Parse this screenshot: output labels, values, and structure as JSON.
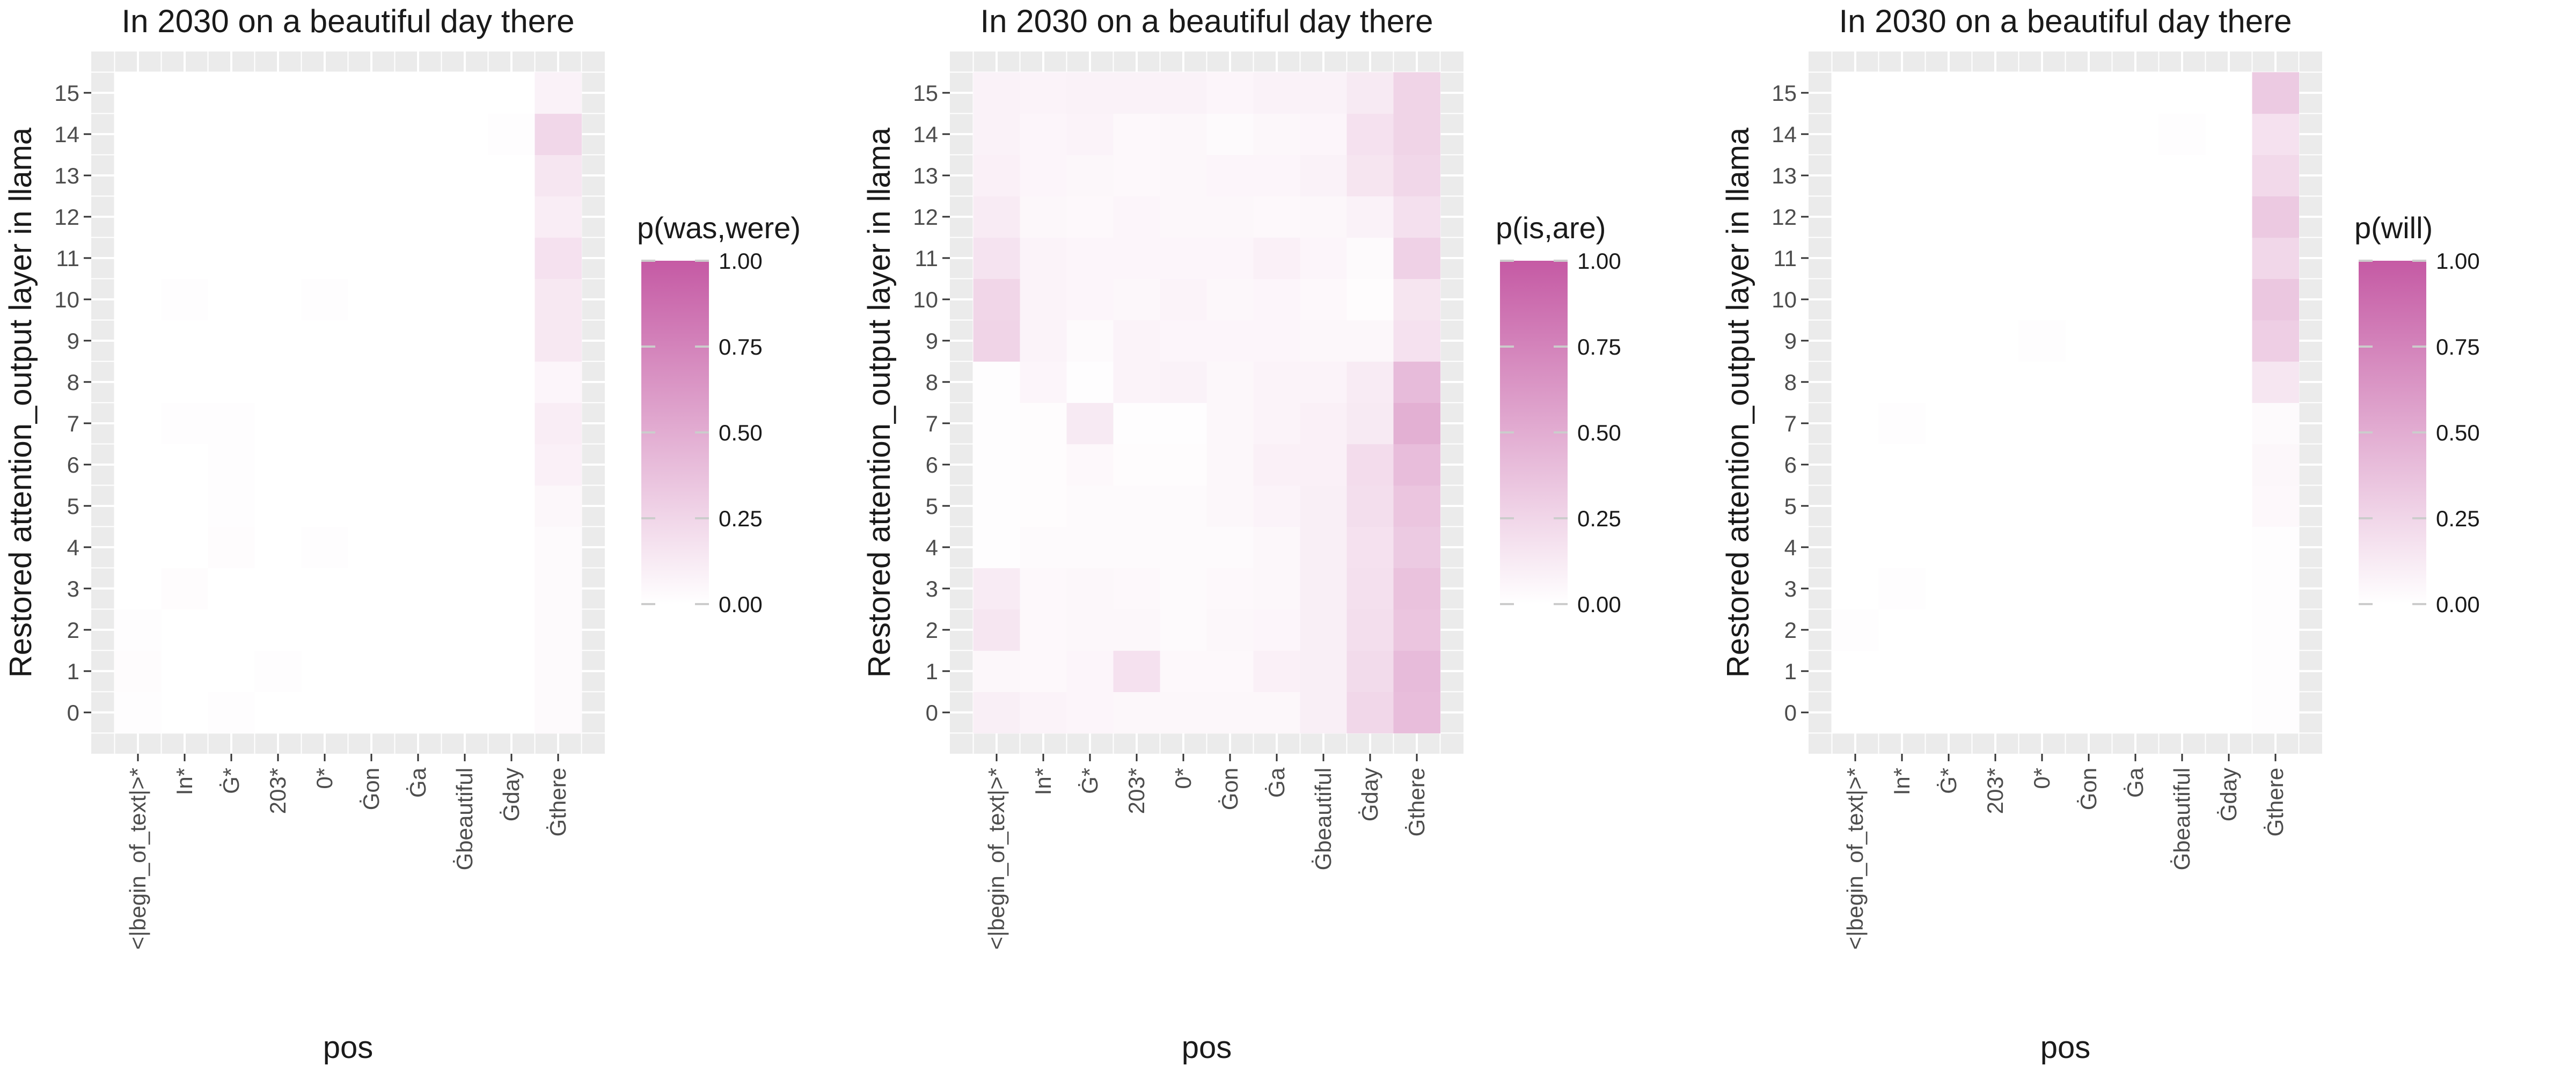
{
  "chart_data": [
    {
      "type": "heatmap",
      "title": "In 2030 on a beautiful day there",
      "xlabel": "pos",
      "ylabel": "Restored attention_output layer in llama",
      "x_categories": [
        "<|begin_of_text|>*",
        "In*",
        "Ġ*",
        "203*",
        "0*",
        "Ġon",
        "Ġa",
        "Ġbeautiful",
        "Ġday",
        "Ġthere"
      ],
      "y_categories": [
        "0",
        "1",
        "2",
        "3",
        "4",
        "5",
        "6",
        "7",
        "8",
        "9",
        "10",
        "11",
        "12",
        "13",
        "14",
        "15"
      ],
      "legend": {
        "title": "p(was,were)",
        "ticks": [
          "0.00",
          "0.25",
          "0.50",
          "0.75",
          "1.00"
        ],
        "position": "right"
      },
      "color_low": "#ffffff",
      "color_high": "#c55aa4",
      "value_range": [
        0,
        1
      ],
      "values": [
        [
          0.01,
          0.0,
          0.01,
          0.0,
          0.0,
          0.0,
          0.0,
          0.0,
          0.0,
          0.03
        ],
        [
          0.02,
          0.0,
          0.0,
          0.01,
          0.0,
          0.0,
          0.0,
          0.0,
          0.0,
          0.03
        ],
        [
          0.01,
          0.0,
          0.0,
          0.0,
          0.0,
          0.0,
          0.0,
          0.0,
          0.0,
          0.03
        ],
        [
          0.0,
          0.02,
          0.0,
          0.0,
          0.0,
          0.0,
          0.0,
          0.0,
          0.0,
          0.03
        ],
        [
          0.0,
          0.0,
          0.02,
          0.0,
          0.01,
          0.0,
          0.0,
          0.0,
          0.0,
          0.03
        ],
        [
          0.0,
          0.0,
          0.01,
          0.0,
          0.0,
          0.0,
          0.0,
          0.0,
          0.0,
          0.05
        ],
        [
          0.0,
          0.0,
          0.01,
          0.0,
          0.0,
          0.0,
          0.0,
          0.0,
          0.0,
          0.09
        ],
        [
          0.0,
          0.01,
          0.01,
          0.0,
          0.0,
          0.0,
          0.0,
          0.0,
          0.0,
          0.11
        ],
        [
          0.0,
          0.0,
          0.0,
          0.0,
          0.0,
          0.0,
          0.0,
          0.0,
          0.0,
          0.06
        ],
        [
          0.0,
          0.0,
          0.0,
          0.0,
          0.0,
          0.0,
          0.0,
          0.0,
          0.0,
          0.14
        ],
        [
          0.0,
          0.01,
          0.0,
          0.0,
          0.01,
          0.0,
          0.0,
          0.0,
          0.0,
          0.14
        ],
        [
          0.0,
          0.0,
          0.0,
          0.0,
          0.0,
          0.0,
          0.0,
          0.0,
          0.0,
          0.18
        ],
        [
          0.0,
          0.0,
          0.0,
          0.0,
          0.0,
          0.0,
          0.0,
          0.0,
          0.0,
          0.11
        ],
        [
          0.0,
          0.0,
          0.0,
          0.0,
          0.0,
          0.0,
          0.0,
          0.0,
          0.0,
          0.15
        ],
        [
          0.0,
          0.0,
          0.0,
          0.0,
          0.0,
          0.0,
          0.0,
          0.0,
          0.01,
          0.24
        ],
        [
          0.0,
          0.0,
          0.0,
          0.0,
          0.0,
          0.0,
          0.0,
          0.0,
          0.0,
          0.08
        ]
      ]
    },
    {
      "type": "heatmap",
      "title": "In 2030 on a beautiful day there",
      "xlabel": "pos",
      "ylabel": "Restored attention_output layer in llama",
      "x_categories": [
        "<|begin_of_text|>*",
        "In*",
        "Ġ*",
        "203*",
        "0*",
        "Ġon",
        "Ġa",
        "Ġbeautiful",
        "Ġday",
        "Ġthere"
      ],
      "y_categories": [
        "0",
        "1",
        "2",
        "3",
        "4",
        "5",
        "6",
        "7",
        "8",
        "9",
        "10",
        "11",
        "12",
        "13",
        "14",
        "15"
      ],
      "legend": {
        "title": "p(is,are)",
        "ticks": [
          "0.00",
          "0.25",
          "0.50",
          "0.75",
          "1.00"
        ],
        "position": "right"
      },
      "color_low": "#ffffff",
      "color_high": "#c55aa4",
      "value_range": [
        0,
        1
      ],
      "values": [
        [
          0.1,
          0.07,
          0.06,
          0.05,
          0.05,
          0.05,
          0.05,
          0.1,
          0.24,
          0.4
        ],
        [
          0.05,
          0.04,
          0.06,
          0.18,
          0.04,
          0.04,
          0.09,
          0.1,
          0.22,
          0.41
        ],
        [
          0.15,
          0.04,
          0.05,
          0.05,
          0.03,
          0.05,
          0.06,
          0.1,
          0.2,
          0.35
        ],
        [
          0.12,
          0.04,
          0.05,
          0.04,
          0.03,
          0.04,
          0.05,
          0.1,
          0.19,
          0.37
        ],
        [
          0.01,
          0.03,
          0.03,
          0.03,
          0.03,
          0.03,
          0.05,
          0.1,
          0.18,
          0.32
        ],
        [
          0.01,
          0.02,
          0.03,
          0.03,
          0.03,
          0.05,
          0.07,
          0.1,
          0.2,
          0.35
        ],
        [
          0.01,
          0.02,
          0.04,
          0.02,
          0.02,
          0.05,
          0.09,
          0.09,
          0.21,
          0.4
        ],
        [
          0.01,
          0.02,
          0.13,
          0.01,
          0.01,
          0.05,
          0.07,
          0.09,
          0.13,
          0.48
        ],
        [
          0.01,
          0.06,
          0.01,
          0.07,
          0.08,
          0.05,
          0.07,
          0.07,
          0.12,
          0.41
        ],
        [
          0.26,
          0.07,
          0.03,
          0.07,
          0.06,
          0.06,
          0.06,
          0.05,
          0.05,
          0.18
        ],
        [
          0.25,
          0.07,
          0.06,
          0.05,
          0.07,
          0.05,
          0.06,
          0.04,
          0.02,
          0.16
        ],
        [
          0.17,
          0.07,
          0.06,
          0.06,
          0.06,
          0.06,
          0.09,
          0.06,
          0.03,
          0.28
        ],
        [
          0.12,
          0.05,
          0.04,
          0.06,
          0.05,
          0.05,
          0.04,
          0.05,
          0.08,
          0.19
        ],
        [
          0.09,
          0.06,
          0.05,
          0.04,
          0.05,
          0.06,
          0.06,
          0.08,
          0.16,
          0.24
        ],
        [
          0.08,
          0.06,
          0.07,
          0.04,
          0.05,
          0.03,
          0.05,
          0.06,
          0.18,
          0.26
        ],
        [
          0.08,
          0.07,
          0.08,
          0.08,
          0.08,
          0.06,
          0.08,
          0.08,
          0.13,
          0.26
        ]
      ]
    },
    {
      "type": "heatmap",
      "title": "In 2030 on a beautiful day there",
      "xlabel": "pos",
      "ylabel": "Restored attention_output layer in llama",
      "x_categories": [
        "<|begin_of_text|>*",
        "In*",
        "Ġ*",
        "203*",
        "0*",
        "Ġon",
        "Ġa",
        "Ġbeautiful",
        "Ġday",
        "Ġthere"
      ],
      "y_categories": [
        "0",
        "1",
        "2",
        "3",
        "4",
        "5",
        "6",
        "7",
        "8",
        "9",
        "10",
        "11",
        "12",
        "13",
        "14",
        "15"
      ],
      "legend": {
        "title": "p(will)",
        "ticks": [
          "0.00",
          "0.25",
          "0.50",
          "0.75",
          "1.00"
        ],
        "position": "right"
      },
      "color_low": "#ffffff",
      "color_high": "#c55aa4",
      "value_range": [
        0,
        1
      ],
      "values": [
        [
          0.0,
          0.0,
          0.0,
          0.0,
          0.0,
          0.0,
          0.0,
          0.0,
          0.0,
          0.01
        ],
        [
          0.0,
          0.0,
          0.0,
          0.0,
          0.0,
          0.0,
          0.0,
          0.0,
          0.0,
          0.01
        ],
        [
          0.01,
          0.0,
          0.0,
          0.0,
          0.0,
          0.0,
          0.0,
          0.0,
          0.0,
          0.01
        ],
        [
          0.0,
          0.01,
          0.0,
          0.0,
          0.0,
          0.0,
          0.0,
          0.0,
          0.0,
          0.01
        ],
        [
          0.0,
          0.0,
          0.0,
          0.0,
          0.0,
          0.0,
          0.0,
          0.0,
          0.0,
          0.01
        ],
        [
          0.0,
          0.0,
          0.0,
          0.0,
          0.0,
          0.0,
          0.0,
          0.0,
          0.0,
          0.04
        ],
        [
          0.0,
          0.0,
          0.0,
          0.0,
          0.0,
          0.0,
          0.0,
          0.0,
          0.0,
          0.05
        ],
        [
          0.0,
          0.01,
          0.0,
          0.0,
          0.0,
          0.0,
          0.0,
          0.0,
          0.0,
          0.03
        ],
        [
          0.0,
          0.0,
          0.0,
          0.0,
          0.0,
          0.0,
          0.0,
          0.0,
          0.0,
          0.15
        ],
        [
          0.0,
          0.0,
          0.0,
          0.0,
          0.01,
          0.0,
          0.0,
          0.0,
          0.0,
          0.3
        ],
        [
          0.0,
          0.0,
          0.0,
          0.0,
          0.0,
          0.0,
          0.0,
          0.0,
          0.0,
          0.34
        ],
        [
          0.0,
          0.0,
          0.0,
          0.0,
          0.0,
          0.0,
          0.0,
          0.0,
          0.0,
          0.24
        ],
        [
          0.0,
          0.0,
          0.0,
          0.0,
          0.0,
          0.0,
          0.0,
          0.0,
          0.0,
          0.33
        ],
        [
          0.0,
          0.0,
          0.0,
          0.0,
          0.0,
          0.0,
          0.0,
          0.0,
          0.0,
          0.23
        ],
        [
          0.0,
          0.0,
          0.0,
          0.0,
          0.0,
          0.0,
          0.0,
          0.01,
          0.0,
          0.18
        ],
        [
          0.0,
          0.0,
          0.0,
          0.0,
          0.0,
          0.0,
          0.0,
          0.0,
          0.0,
          0.32
        ]
      ]
    }
  ]
}
